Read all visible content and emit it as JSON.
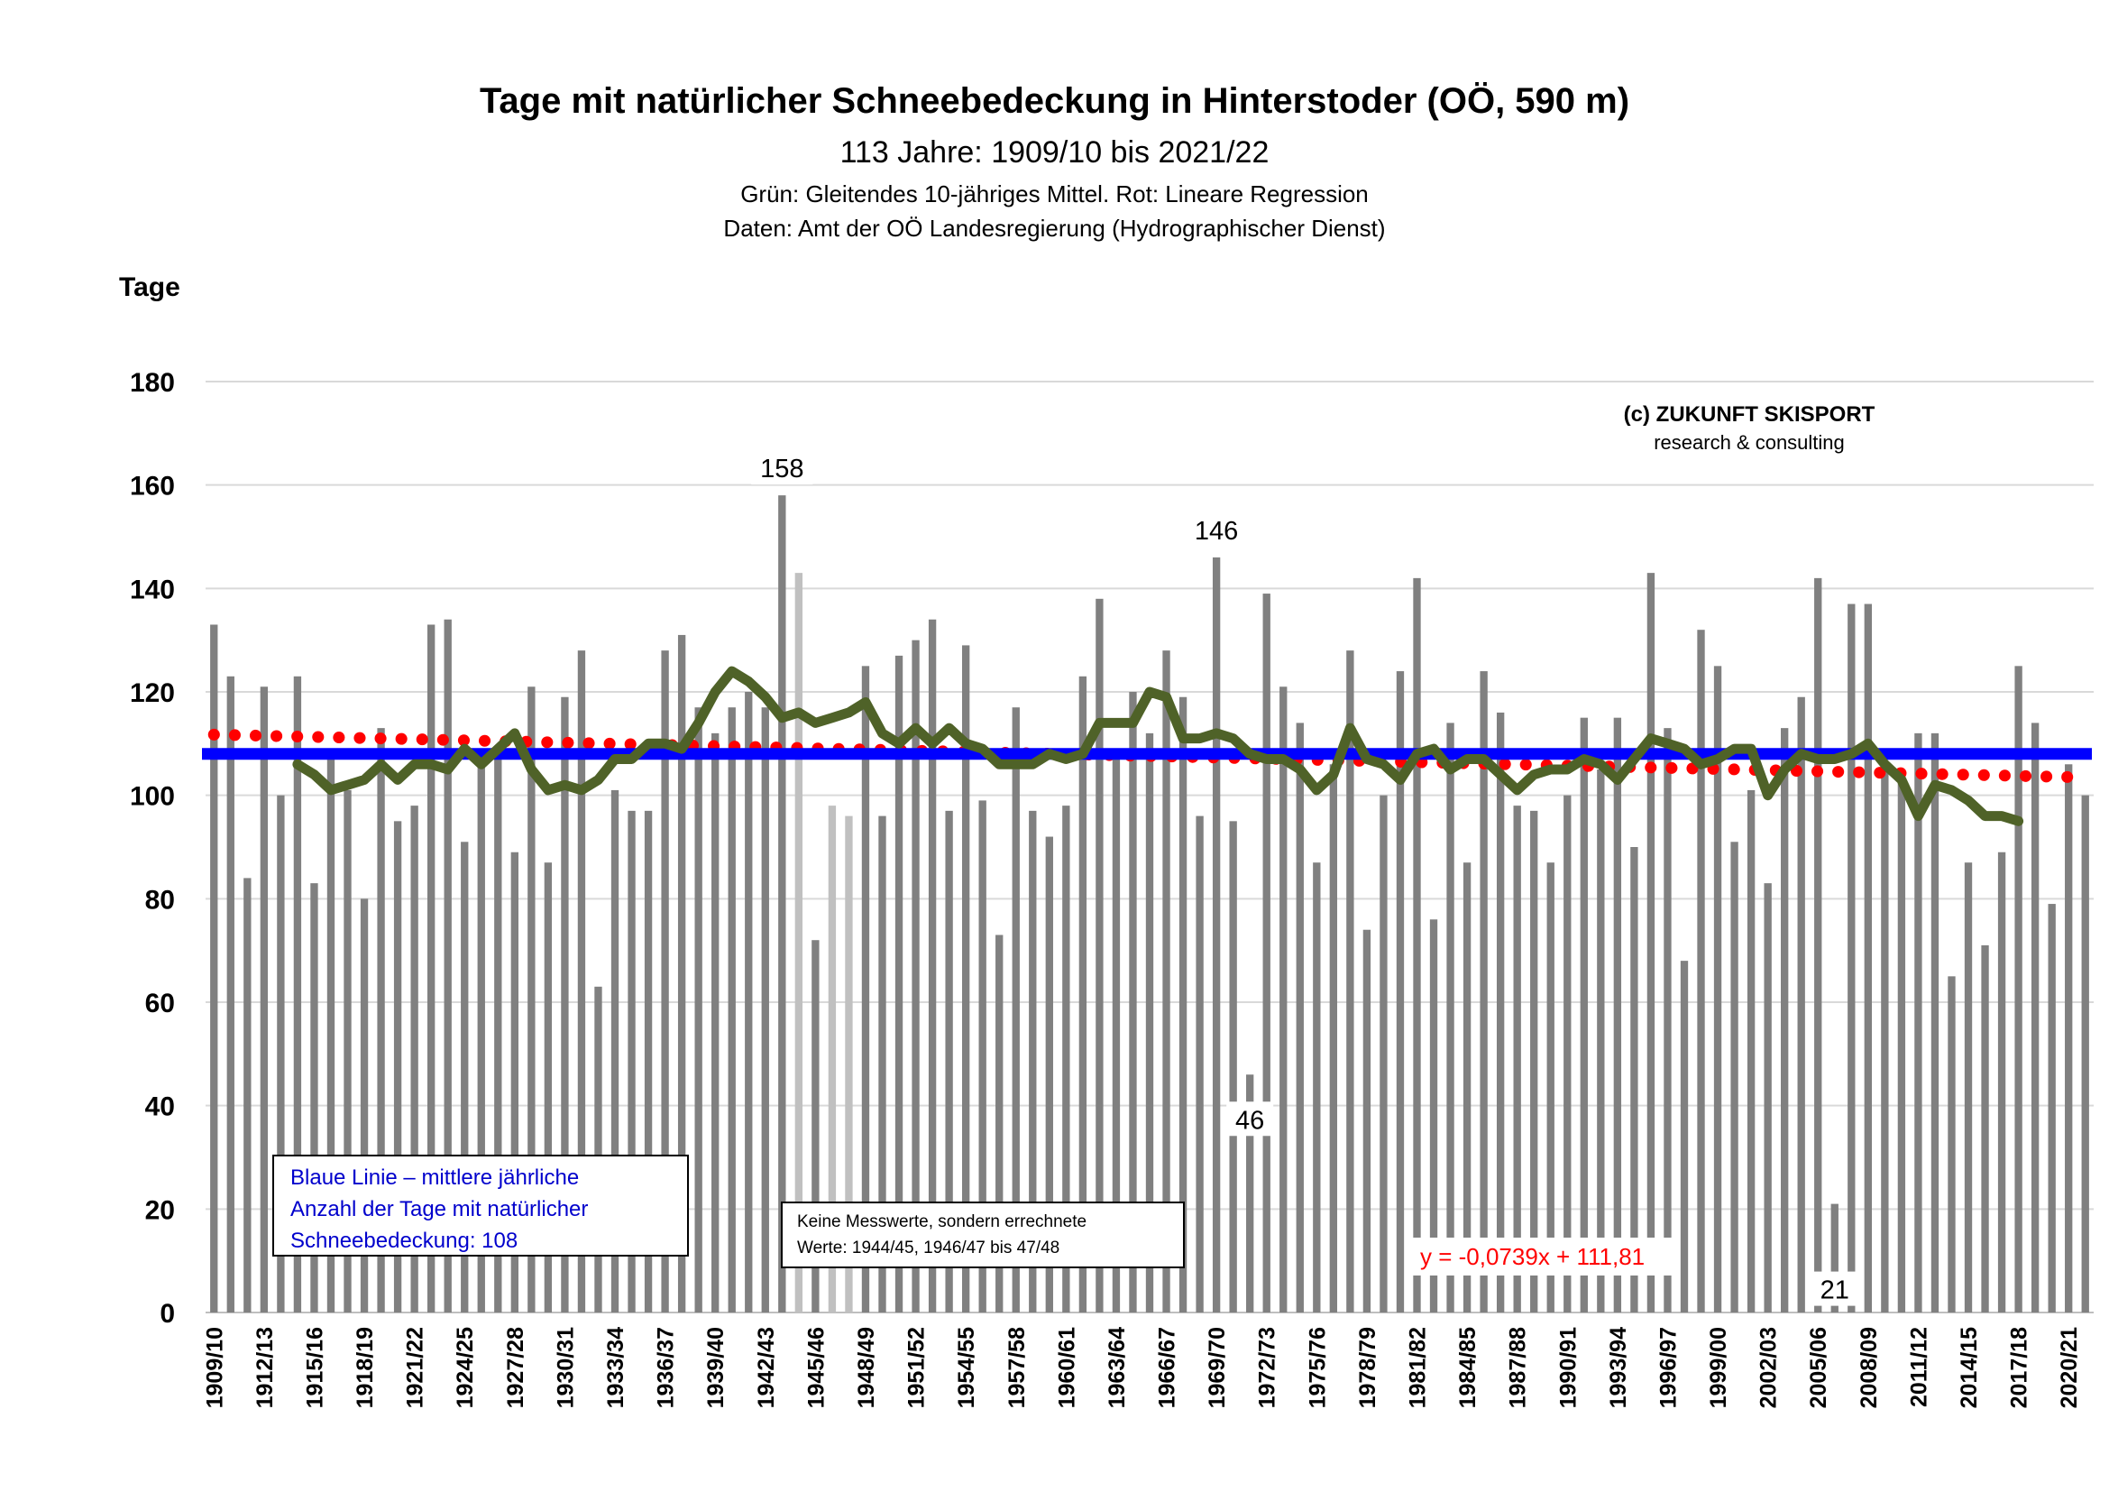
{
  "header": {
    "title": "Tage mit natürlicher Schneebedeckung in Hinterstoder (OÖ, 590 m)",
    "subtitle": "113 Jahre: 1909/10 bis 2021/22",
    "note_line1": "Grün: Gleitendes 10-jähriges Mittel. Rot: Lineare Regression",
    "note_line2": "Daten: Amt der OÖ Landesregierung (Hydrographischer Dienst)"
  },
  "branding": {
    "line1": "(c) ZUKUNFT SKISPORT",
    "line2": "research & consulting"
  },
  "boxes": {
    "mean_line1": "Blaue Linie – mittlere jährliche",
    "mean_line2": "Anzahl der Tage mit natürlicher",
    "mean_line3": "Schneebedeckung: 108",
    "calc_line1": "Keine Messwerte, sondern errechnete",
    "calc_line2": "Werte:  1944/45, 1946/47 bis 47/48"
  },
  "colors": {
    "bar": "#808080",
    "bar_estimated": "#c0c0c0",
    "moving_average": "#4f6228",
    "mean_line": "#0000ff",
    "regression": "#ff0000",
    "grid": "#d9d9d9"
  },
  "chart_data": {
    "type": "bar",
    "title": "Tage mit natürlicher Schneebedeckung in Hinterstoder (OÖ, 590 m)",
    "ylabel": "Tage",
    "xlabel": "",
    "ylim": [
      0,
      180
    ],
    "yticks": [
      0,
      20,
      40,
      60,
      80,
      100,
      120,
      140,
      160,
      180
    ],
    "grid": true,
    "x_tick_every": 3,
    "categories": [
      "1909/10",
      "1910/11",
      "1911/12",
      "1912/13",
      "1913/14",
      "1914/15",
      "1915/16",
      "1916/17",
      "1917/18",
      "1918/19",
      "1919/20",
      "1920/21",
      "1921/22",
      "1922/23",
      "1923/24",
      "1924/25",
      "1925/26",
      "1926/27",
      "1927/28",
      "1928/29",
      "1929/30",
      "1930/31",
      "1931/32",
      "1932/33",
      "1933/34",
      "1934/35",
      "1935/36",
      "1936/37",
      "1937/38",
      "1938/39",
      "1939/40",
      "1940/41",
      "1941/42",
      "1942/43",
      "1943/44",
      "1944/45",
      "1945/46",
      "1946/47",
      "1947/48",
      "1948/49",
      "1949/50",
      "1950/51",
      "1951/52",
      "1952/53",
      "1953/54",
      "1954/55",
      "1955/56",
      "1956/57",
      "1957/58",
      "1958/59",
      "1959/60",
      "1960/61",
      "1961/62",
      "1962/63",
      "1963/64",
      "1964/65",
      "1965/66",
      "1966/67",
      "1967/68",
      "1968/69",
      "1969/70",
      "1970/71",
      "1971/72",
      "1972/73",
      "1973/74",
      "1974/75",
      "1975/76",
      "1976/77",
      "1977/78",
      "1978/79",
      "1979/80",
      "1980/81",
      "1981/82",
      "1982/83",
      "1983/84",
      "1984/85",
      "1985/86",
      "1986/87",
      "1987/88",
      "1988/89",
      "1989/90",
      "1990/91",
      "1991/92",
      "1992/93",
      "1993/94",
      "1994/95",
      "1995/96",
      "1996/97",
      "1997/98",
      "1998/99",
      "1999/00",
      "2000/01",
      "2001/02",
      "2002/03",
      "2003/04",
      "2004/05",
      "2005/06",
      "2006/07",
      "2007/08",
      "2008/09",
      "2009/10",
      "2010/11",
      "2011/12",
      "2012/13",
      "2013/14",
      "2014/15",
      "2015/16",
      "2016/17",
      "2017/18",
      "2018/19",
      "2019/20",
      "2020/21",
      "2021/22"
    ],
    "series": [
      {
        "name": "Tage mit Schneebedeckung",
        "type": "bar",
        "values": [
          133,
          123,
          84,
          121,
          100,
          123,
          83,
          107,
          101,
          80,
          113,
          95,
          98,
          133,
          134,
          91,
          106,
          108,
          89,
          121,
          87,
          119,
          128,
          63,
          101,
          97,
          97,
          128,
          131,
          117,
          112,
          117,
          120,
          117,
          158,
          143,
          72,
          98,
          96,
          125,
          96,
          127,
          130,
          134,
          97,
          129,
          99,
          73,
          117,
          97,
          92,
          98,
          123,
          138,
          108,
          120,
          112,
          128,
          119,
          96,
          146,
          95,
          46,
          139,
          121,
          114,
          87,
          106,
          128,
          74,
          100,
          124,
          142,
          76,
          114,
          87,
          124,
          116,
          98,
          97,
          87,
          100,
          115,
          105,
          115,
          90,
          143,
          113,
          68,
          132,
          125,
          91,
          101,
          83,
          113,
          119,
          142,
          21,
          137,
          137,
          105,
          105,
          112,
          112,
          65,
          87,
          71,
          89,
          125,
          114,
          79,
          106,
          100
        ],
        "estimated": [
          "1944/45",
          "1946/47",
          "1947/48"
        ]
      },
      {
        "name": "Gleitendes 10-jähriges Mittel",
        "type": "line",
        "start": "1914/15",
        "values": [
          106,
          104,
          101,
          102,
          103,
          106,
          103,
          106,
          106,
          105,
          109,
          106,
          109,
          112,
          105,
          101,
          102,
          101,
          103,
          107,
          107,
          110,
          110,
          109,
          114,
          120,
          124,
          122,
          119,
          115,
          116,
          114,
          115,
          116,
          118,
          112,
          110,
          113,
          110,
          113,
          110,
          109,
          106,
          106,
          106,
          108,
          107,
          108,
          114,
          114,
          114,
          120,
          119,
          111,
          111,
          112,
          111,
          108,
          107,
          107,
          105,
          101,
          104,
          113,
          107,
          106,
          103,
          108,
          109,
          105,
          107,
          107,
          104,
          101,
          104,
          105,
          105,
          107,
          106,
          103,
          107,
          111,
          110,
          109,
          106,
          107,
          109,
          109,
          100,
          105,
          108,
          107,
          107,
          108,
          110,
          106,
          103,
          96,
          102,
          101,
          99,
          96,
          96,
          95
        ]
      },
      {
        "name": "Mittlere jährliche Anzahl",
        "type": "hline",
        "value": 108
      },
      {
        "name": "Lineare Regression",
        "type": "trendline",
        "slope": -0.0739,
        "intercept": 111.81,
        "equation": "y = -0,0739x + 111,81"
      }
    ],
    "annotations": [
      {
        "category": "1943/44",
        "text": "158"
      },
      {
        "category": "1969/70",
        "text": "146"
      },
      {
        "category": "1971/72",
        "text": "46"
      },
      {
        "category": "2006/07",
        "text": "21"
      }
    ]
  }
}
